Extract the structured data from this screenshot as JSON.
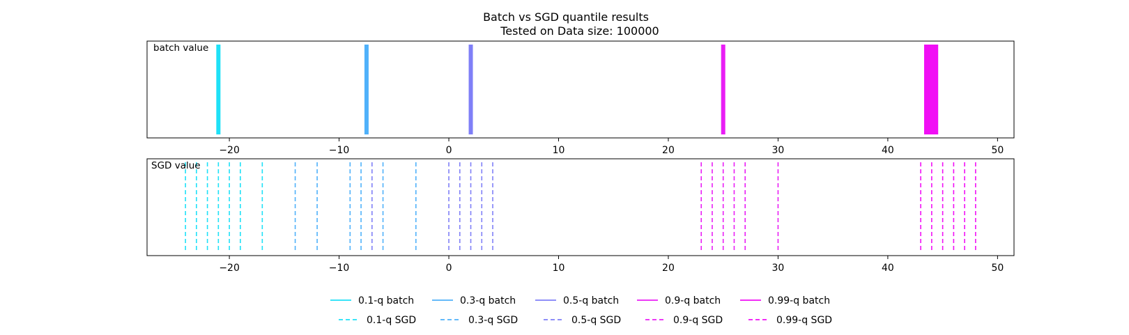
{
  "chart_data": {
    "type": "line",
    "title": "Batch vs SGD quantile results",
    "subtitle": "Tested on Data size: 100000",
    "xlim": [
      -27.5,
      51.5
    ],
    "xticks": [
      -20,
      -10,
      0,
      10,
      20,
      30,
      40,
      50
    ],
    "xtick_labels": [
      "−20",
      "−10",
      "0",
      "10",
      "20",
      "30",
      "40",
      "50"
    ],
    "grid": false,
    "legend_position": "bottom-center",
    "panels": [
      {
        "label": "batch value",
        "linestyle": "solid",
        "series": [
          {
            "name": "0.1-q batch",
            "color": "#1ee1f7",
            "values": [
              -21.0
            ]
          },
          {
            "name": "0.3-q batch",
            "color": "#4fb1fa",
            "values": [
              -7.5
            ]
          },
          {
            "name": "0.5-q batch",
            "color": "#7f7ff7",
            "values": [
              2.0
            ]
          },
          {
            "name": "0.9-q batch",
            "color": "#e91ef5",
            "values": [
              25.0
            ]
          },
          {
            "name": "0.99-q batch",
            "color": "#f10ff5",
            "values": [
              43.5,
              43.7,
              43.9,
              44.1,
              44.4
            ]
          }
        ]
      },
      {
        "label": "SGD value",
        "linestyle": "dashed",
        "series": [
          {
            "name": "0.1-q SGD",
            "color": "#1ee1f7",
            "values": [
              -24,
              -23,
              -22,
              -21,
              -20,
              -19,
              -17
            ]
          },
          {
            "name": "0.3-q SGD",
            "color": "#4fb1fa",
            "values": [
              -14,
              -12,
              -9,
              -8,
              -6,
              -3
            ]
          },
          {
            "name": "0.5-q SGD",
            "color": "#7f7ff7",
            "values": [
              -7,
              0,
              1,
              2,
              3,
              4
            ]
          },
          {
            "name": "0.9-q SGD",
            "color": "#e91ef5",
            "values": [
              23,
              24,
              25,
              26,
              27,
              30
            ]
          },
          {
            "name": "0.99-q SGD",
            "color": "#f10ff5",
            "values": [
              43,
              44,
              45,
              46,
              47,
              48
            ]
          }
        ]
      }
    ]
  }
}
